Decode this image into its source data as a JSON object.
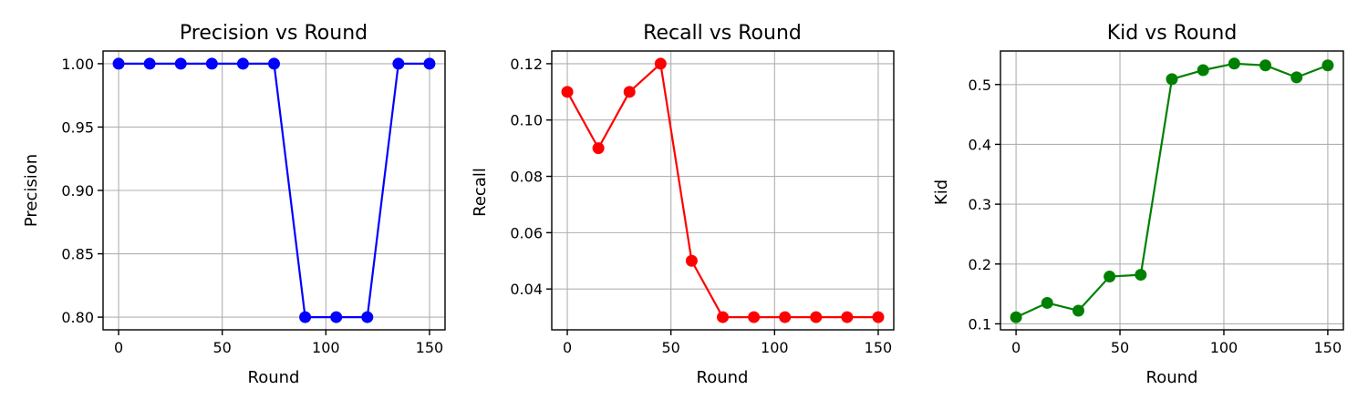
{
  "chart_data": [
    {
      "type": "line",
      "title": "Precision vs Round",
      "xlabel": "Round",
      "ylabel": "Precision",
      "x": [
        0,
        15,
        30,
        45,
        60,
        75,
        90,
        105,
        120,
        135,
        150
      ],
      "series": [
        {
          "values": [
            1.0,
            1.0,
            1.0,
            1.0,
            1.0,
            1.0,
            0.8,
            0.8,
            0.8,
            1.0,
            1.0
          ],
          "color": "#0000ff",
          "marker": "circle"
        }
      ],
      "xlim": [
        -7.5,
        157.5
      ],
      "ylim": [
        0.79,
        1.01
      ],
      "xticks": [
        0,
        50,
        100,
        150
      ],
      "xtick_labels": [
        "0",
        "50",
        "100",
        "150"
      ],
      "yticks": [
        0.8,
        0.85,
        0.9,
        0.95,
        1.0
      ],
      "ytick_labels": [
        "0.80",
        "0.85",
        "0.90",
        "0.95",
        "1.00"
      ],
      "grid": true
    },
    {
      "type": "line",
      "title": "Recall vs Round",
      "xlabel": "Round",
      "ylabel": "Recall",
      "x": [
        0,
        15,
        30,
        45,
        60,
        75,
        90,
        105,
        120,
        135,
        150
      ],
      "series": [
        {
          "values": [
            0.11,
            0.09,
            0.11,
            0.12,
            0.05,
            0.03,
            0.03,
            0.03,
            0.03,
            0.03,
            0.03
          ],
          "color": "#ff0000",
          "marker": "circle"
        }
      ],
      "xlim": [
        -7.5,
        157.5
      ],
      "ylim": [
        0.0255,
        0.1245
      ],
      "xticks": [
        0,
        50,
        100,
        150
      ],
      "xtick_labels": [
        "0",
        "50",
        "100",
        "150"
      ],
      "yticks": [
        0.04,
        0.06,
        0.08,
        0.1,
        0.12
      ],
      "ytick_labels": [
        "0.04",
        "0.06",
        "0.08",
        "0.10",
        "0.12"
      ],
      "grid": true
    },
    {
      "type": "line",
      "title": "Kid vs Round",
      "xlabel": "Round",
      "ylabel": "Kid",
      "x": [
        0,
        15,
        30,
        45,
        60,
        75,
        90,
        105,
        120,
        135,
        150
      ],
      "series": [
        {
          "values": [
            0.111,
            0.135,
            0.122,
            0.179,
            0.182,
            0.509,
            0.524,
            0.535,
            0.532,
            0.512,
            0.532
          ],
          "color": "#008000",
          "marker": "circle"
        }
      ],
      "xlim": [
        -7.5,
        157.5
      ],
      "ylim": [
        0.09,
        0.556
      ],
      "xticks": [
        0,
        50,
        100,
        150
      ],
      "xtick_labels": [
        "0",
        "50",
        "100",
        "150"
      ],
      "yticks": [
        0.1,
        0.2,
        0.3,
        0.4,
        0.5
      ],
      "ytick_labels": [
        "0.1",
        "0.2",
        "0.3",
        "0.4",
        "0.5"
      ],
      "grid": true
    }
  ]
}
